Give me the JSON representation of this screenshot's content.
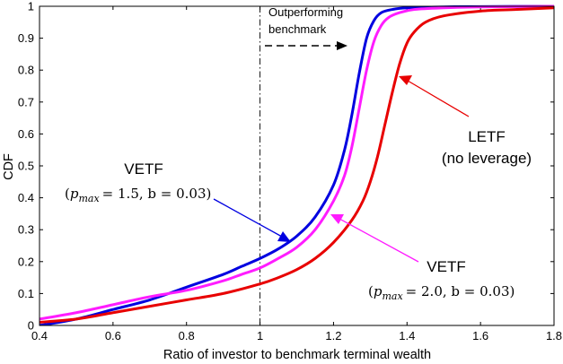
{
  "chart_data": {
    "type": "line",
    "title": "",
    "xlabel": "Ratio of investor to benchmark terminal wealth",
    "ylabel": "CDF",
    "xlim": [
      0.4,
      1.8
    ],
    "ylim": [
      0,
      1
    ],
    "grid": false,
    "x_ticks": [
      "0.4",
      "0.6",
      "0.8",
      "1",
      "1.2",
      "1.4",
      "1.6",
      "1.8"
    ],
    "y_ticks": [
      "0",
      "0.1",
      "0.2",
      "0.3",
      "0.4",
      "0.5",
      "0.6",
      "0.7",
      "0.8",
      "0.9",
      "1"
    ],
    "colors": {
      "blue": "#0000e0",
      "magenta": "#ff1cff",
      "red": "#e80000"
    },
    "benchmark_line_x": 1.0,
    "annotations": {
      "outperforming_line1": "Outperforming",
      "outperforming_line2": "benchmark",
      "letf_line1": "LETF",
      "letf_line2": "(no leverage)",
      "vetf_blue_title": "VETF",
      "vetf_blue_params": {
        "p": "p",
        "sub": "max",
        "eq": "= 1.5, b = 0.03)",
        "open": "("
      },
      "vetf_magenta_title": "VETF",
      "vetf_magenta_params": {
        "p": "p",
        "sub": "max",
        "eq": "= 2.0, b = 0.03)",
        "open": "("
      }
    },
    "series": [
      {
        "key": "blue",
        "x": [
          0.4,
          0.5,
          0.6,
          0.7,
          0.8,
          0.9,
          0.95,
          1.0,
          1.05,
          1.1,
          1.15,
          1.2,
          1.23,
          1.25,
          1.27,
          1.29,
          1.31,
          1.33,
          1.36,
          1.4,
          1.5,
          1.6,
          1.8
        ],
        "y": [
          0.0,
          0.02,
          0.05,
          0.08,
          0.12,
          0.16,
          0.185,
          0.21,
          0.24,
          0.28,
          0.34,
          0.44,
          0.55,
          0.66,
          0.79,
          0.9,
          0.955,
          0.98,
          0.99,
          0.995,
          0.998,
          0.999,
          1.0
        ]
      },
      {
        "key": "magenta",
        "x": [
          0.4,
          0.5,
          0.6,
          0.7,
          0.8,
          0.9,
          0.95,
          1.0,
          1.05,
          1.1,
          1.15,
          1.2,
          1.23,
          1.25,
          1.27,
          1.29,
          1.31,
          1.33,
          1.35,
          1.38,
          1.42,
          1.5,
          1.6,
          1.8
        ],
        "y": [
          0.02,
          0.04,
          0.065,
          0.09,
          0.11,
          0.14,
          0.16,
          0.18,
          0.21,
          0.245,
          0.3,
          0.39,
          0.47,
          0.56,
          0.68,
          0.8,
          0.89,
          0.94,
          0.965,
          0.98,
          0.99,
          0.995,
          0.998,
          1.0
        ]
      },
      {
        "key": "red",
        "x": [
          0.4,
          0.5,
          0.6,
          0.7,
          0.8,
          0.9,
          1.0,
          1.05,
          1.1,
          1.15,
          1.2,
          1.25,
          1.28,
          1.3,
          1.32,
          1.34,
          1.36,
          1.38,
          1.4,
          1.42,
          1.45,
          1.5,
          1.6,
          1.7,
          1.8
        ],
        "y": [
          0.01,
          0.02,
          0.04,
          0.06,
          0.08,
          0.1,
          0.13,
          0.15,
          0.175,
          0.21,
          0.26,
          0.33,
          0.39,
          0.45,
          0.53,
          0.63,
          0.73,
          0.82,
          0.885,
          0.92,
          0.95,
          0.97,
          0.985,
          0.99,
          0.995
        ]
      }
    ]
  }
}
